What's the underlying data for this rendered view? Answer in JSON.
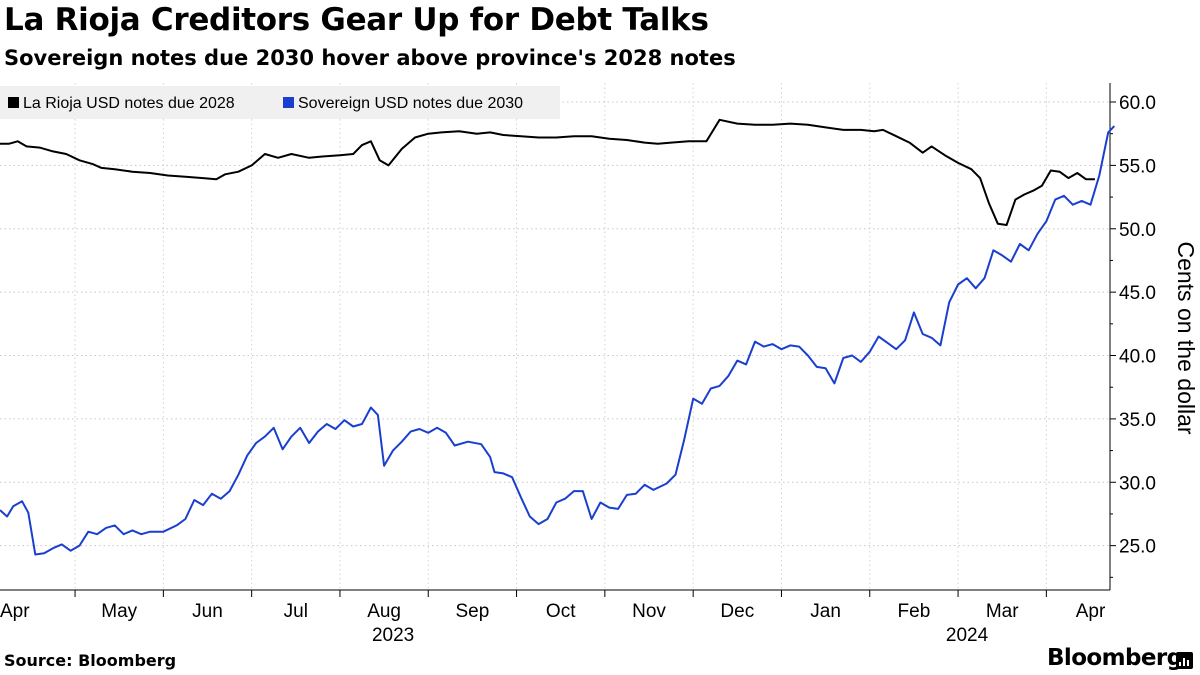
{
  "title": "La Rioja Creditors Gear Up for Debt Talks",
  "subtitle": "Sovereign notes due 2030 hover above province's 2028 notes",
  "source": "Source: Bloomberg",
  "brand": "Bloomberg",
  "chart_data": {
    "type": "line",
    "ylabel": "Cents on the dollar",
    "ylim": [
      21.5,
      61.5
    ],
    "yticks": [
      "25.0",
      "30.0",
      "35.0",
      "40.0",
      "45.0",
      "50.0",
      "55.0",
      "60.0"
    ],
    "x_range": [
      0,
      12.1
    ],
    "xticks": [
      {
        "label": "Apr",
        "x": 0.35
      },
      {
        "label": "May",
        "x": 1.35
      },
      {
        "label": "Jun",
        "x": 2.35
      },
      {
        "label": "Jul",
        "x": 3.35
      },
      {
        "label": "Aug",
        "x": 4.35
      },
      {
        "label": "Sep",
        "x": 5.35
      },
      {
        "label": "Oct",
        "x": 6.35
      },
      {
        "label": "Nov",
        "x": 7.35
      },
      {
        "label": "Dec",
        "x": 8.35
      },
      {
        "label": "Jan",
        "x": 9.35
      },
      {
        "label": "Feb",
        "x": 10.35
      },
      {
        "label": "Mar",
        "x": 11.35
      },
      {
        "label": "Apr",
        "x": 12.35
      }
    ],
    "years": [
      {
        "label": "2023",
        "x": 4.35
      },
      {
        "label": "2024",
        "x": 10.85
      }
    ],
    "legend_position": "top-left",
    "series": [
      {
        "name": "La Rioja USD notes due 2028",
        "color": "#000000",
        "points": [
          [
            0,
            56.7
          ],
          [
            0.1,
            56.7
          ],
          [
            0.2,
            56.9
          ],
          [
            0.3,
            56.5
          ],
          [
            0.45,
            56.4
          ],
          [
            0.6,
            56.1
          ],
          [
            0.75,
            55.9
          ],
          [
            0.9,
            55.4
          ],
          [
            1.05,
            55.1
          ],
          [
            1.15,
            54.8
          ],
          [
            1.3,
            54.7
          ],
          [
            1.5,
            54.5
          ],
          [
            1.7,
            54.4
          ],
          [
            1.9,
            54.2
          ],
          [
            2.1,
            54.1
          ],
          [
            2.3,
            54.0
          ],
          [
            2.45,
            53.9
          ],
          [
            2.55,
            54.3
          ],
          [
            2.7,
            54.5
          ],
          [
            2.85,
            55.0
          ],
          [
            3.0,
            55.9
          ],
          [
            3.15,
            55.6
          ],
          [
            3.3,
            55.9
          ],
          [
            3.5,
            55.6
          ],
          [
            3.65,
            55.7
          ],
          [
            3.85,
            55.8
          ],
          [
            4.0,
            55.9
          ],
          [
            4.1,
            56.6
          ],
          [
            4.2,
            56.9
          ],
          [
            4.3,
            55.4
          ],
          [
            4.4,
            55.0
          ],
          [
            4.55,
            56.3
          ],
          [
            4.7,
            57.2
          ],
          [
            4.85,
            57.5
          ],
          [
            5.0,
            57.6
          ],
          [
            5.2,
            57.7
          ],
          [
            5.4,
            57.5
          ],
          [
            5.55,
            57.6
          ],
          [
            5.7,
            57.4
          ],
          [
            5.9,
            57.3
          ],
          [
            6.1,
            57.2
          ],
          [
            6.3,
            57.2
          ],
          [
            6.5,
            57.3
          ],
          [
            6.7,
            57.3
          ],
          [
            6.9,
            57.1
          ],
          [
            7.1,
            57.0
          ],
          [
            7.3,
            56.8
          ],
          [
            7.45,
            56.7
          ],
          [
            7.6,
            56.8
          ],
          [
            7.8,
            56.9
          ],
          [
            8.0,
            56.9
          ],
          [
            8.15,
            58.6
          ],
          [
            8.35,
            58.3
          ],
          [
            8.55,
            58.2
          ],
          [
            8.75,
            58.2
          ],
          [
            8.95,
            58.3
          ],
          [
            9.15,
            58.2
          ],
          [
            9.35,
            58.0
          ],
          [
            9.55,
            57.8
          ],
          [
            9.75,
            57.8
          ],
          [
            9.9,
            57.7
          ],
          [
            10.0,
            57.8
          ],
          [
            10.15,
            57.3
          ],
          [
            10.3,
            56.8
          ],
          [
            10.45,
            56.0
          ],
          [
            10.55,
            56.5
          ],
          [
            10.7,
            55.8
          ],
          [
            10.85,
            55.2
          ],
          [
            11.0,
            54.7
          ],
          [
            11.1,
            54.0
          ],
          [
            11.2,
            52.0
          ],
          [
            11.3,
            50.4
          ],
          [
            11.4,
            50.3
          ],
          [
            11.5,
            52.3
          ],
          [
            11.6,
            52.7
          ],
          [
            11.7,
            53.0
          ],
          [
            11.8,
            53.4
          ],
          [
            11.9,
            54.6
          ],
          [
            12.0,
            54.5
          ],
          [
            12.1,
            54.0
          ],
          [
            12.2,
            54.4
          ],
          [
            12.3,
            53.9
          ],
          [
            12.4,
            53.9
          ]
        ]
      },
      {
        "name": "Sovereign USD notes due 2030",
        "color": "#1A3FCF",
        "points": [
          [
            0,
            27.8
          ],
          [
            0.08,
            27.3
          ],
          [
            0.15,
            28.1
          ],
          [
            0.25,
            28.5
          ],
          [
            0.32,
            27.6
          ],
          [
            0.4,
            24.3
          ],
          [
            0.5,
            24.4
          ],
          [
            0.6,
            24.8
          ],
          [
            0.7,
            25.1
          ],
          [
            0.8,
            24.6
          ],
          [
            0.9,
            25.0
          ],
          [
            1.0,
            26.1
          ],
          [
            1.1,
            25.9
          ],
          [
            1.2,
            26.4
          ],
          [
            1.3,
            26.6
          ],
          [
            1.4,
            25.9
          ],
          [
            1.5,
            26.2
          ],
          [
            1.6,
            25.9
          ],
          [
            1.7,
            26.1
          ],
          [
            1.85,
            26.1
          ],
          [
            2.0,
            26.6
          ],
          [
            2.1,
            27.1
          ],
          [
            2.2,
            28.6
          ],
          [
            2.3,
            28.2
          ],
          [
            2.4,
            29.1
          ],
          [
            2.5,
            28.7
          ],
          [
            2.6,
            29.3
          ],
          [
            2.7,
            30.6
          ],
          [
            2.8,
            32.1
          ],
          [
            2.9,
            33.1
          ],
          [
            3.0,
            33.6
          ],
          [
            3.1,
            34.3
          ],
          [
            3.2,
            32.6
          ],
          [
            3.3,
            33.6
          ],
          [
            3.4,
            34.3
          ],
          [
            3.5,
            33.1
          ],
          [
            3.6,
            34.0
          ],
          [
            3.7,
            34.6
          ],
          [
            3.8,
            34.2
          ],
          [
            3.9,
            34.9
          ],
          [
            4.0,
            34.4
          ],
          [
            4.1,
            34.6
          ],
          [
            4.2,
            35.9
          ],
          [
            4.28,
            35.3
          ],
          [
            4.35,
            31.3
          ],
          [
            4.45,
            32.5
          ],
          [
            4.55,
            33.2
          ],
          [
            4.65,
            34.0
          ],
          [
            4.75,
            34.2
          ],
          [
            4.85,
            33.9
          ],
          [
            4.95,
            34.3
          ],
          [
            5.05,
            33.9
          ],
          [
            5.15,
            32.9
          ],
          [
            5.3,
            33.2
          ],
          [
            5.45,
            33.0
          ],
          [
            5.55,
            32.0
          ],
          [
            5.6,
            30.8
          ],
          [
            5.7,
            30.7
          ],
          [
            5.8,
            30.4
          ],
          [
            5.9,
            28.8
          ],
          [
            6.0,
            27.3
          ],
          [
            6.1,
            26.7
          ],
          [
            6.2,
            27.1
          ],
          [
            6.3,
            28.4
          ],
          [
            6.4,
            28.7
          ],
          [
            6.5,
            29.3
          ],
          [
            6.6,
            29.3
          ],
          [
            6.7,
            27.1
          ],
          [
            6.8,
            28.4
          ],
          [
            6.9,
            28.0
          ],
          [
            7.0,
            27.9
          ],
          [
            7.1,
            29.0
          ],
          [
            7.2,
            29.1
          ],
          [
            7.3,
            29.8
          ],
          [
            7.4,
            29.4
          ],
          [
            7.55,
            29.9
          ],
          [
            7.65,
            30.6
          ],
          [
            7.75,
            33.4
          ],
          [
            7.85,
            36.6
          ],
          [
            7.95,
            36.2
          ],
          [
            8.05,
            37.4
          ],
          [
            8.15,
            37.6
          ],
          [
            8.25,
            38.4
          ],
          [
            8.35,
            39.6
          ],
          [
            8.45,
            39.3
          ],
          [
            8.55,
            41.1
          ],
          [
            8.65,
            40.7
          ],
          [
            8.75,
            40.9
          ],
          [
            8.85,
            40.5
          ],
          [
            8.95,
            40.8
          ],
          [
            9.05,
            40.7
          ],
          [
            9.15,
            40.0
          ],
          [
            9.25,
            39.1
          ],
          [
            9.35,
            39.0
          ],
          [
            9.45,
            37.8
          ],
          [
            9.55,
            39.8
          ],
          [
            9.65,
            40.0
          ],
          [
            9.75,
            39.5
          ],
          [
            9.85,
            40.3
          ],
          [
            9.95,
            41.5
          ],
          [
            10.05,
            41.0
          ],
          [
            10.15,
            40.5
          ],
          [
            10.25,
            41.2
          ],
          [
            10.35,
            43.4
          ],
          [
            10.45,
            41.7
          ],
          [
            10.55,
            41.4
          ],
          [
            10.65,
            40.8
          ],
          [
            10.75,
            44.2
          ],
          [
            10.85,
            45.6
          ],
          [
            10.95,
            46.1
          ],
          [
            11.05,
            45.3
          ],
          [
            11.15,
            46.1
          ],
          [
            11.25,
            48.3
          ],
          [
            11.35,
            47.9
          ],
          [
            11.45,
            47.4
          ],
          [
            11.55,
            48.8
          ],
          [
            11.65,
            48.3
          ],
          [
            11.75,
            49.6
          ],
          [
            11.85,
            50.6
          ],
          [
            11.95,
            52.3
          ],
          [
            12.05,
            52.6
          ],
          [
            12.15,
            51.9
          ],
          [
            12.25,
            52.2
          ],
          [
            12.35,
            51.9
          ],
          [
            12.45,
            54.2
          ],
          [
            12.55,
            57.6
          ],
          [
            12.62,
            58.1
          ]
        ]
      }
    ]
  }
}
